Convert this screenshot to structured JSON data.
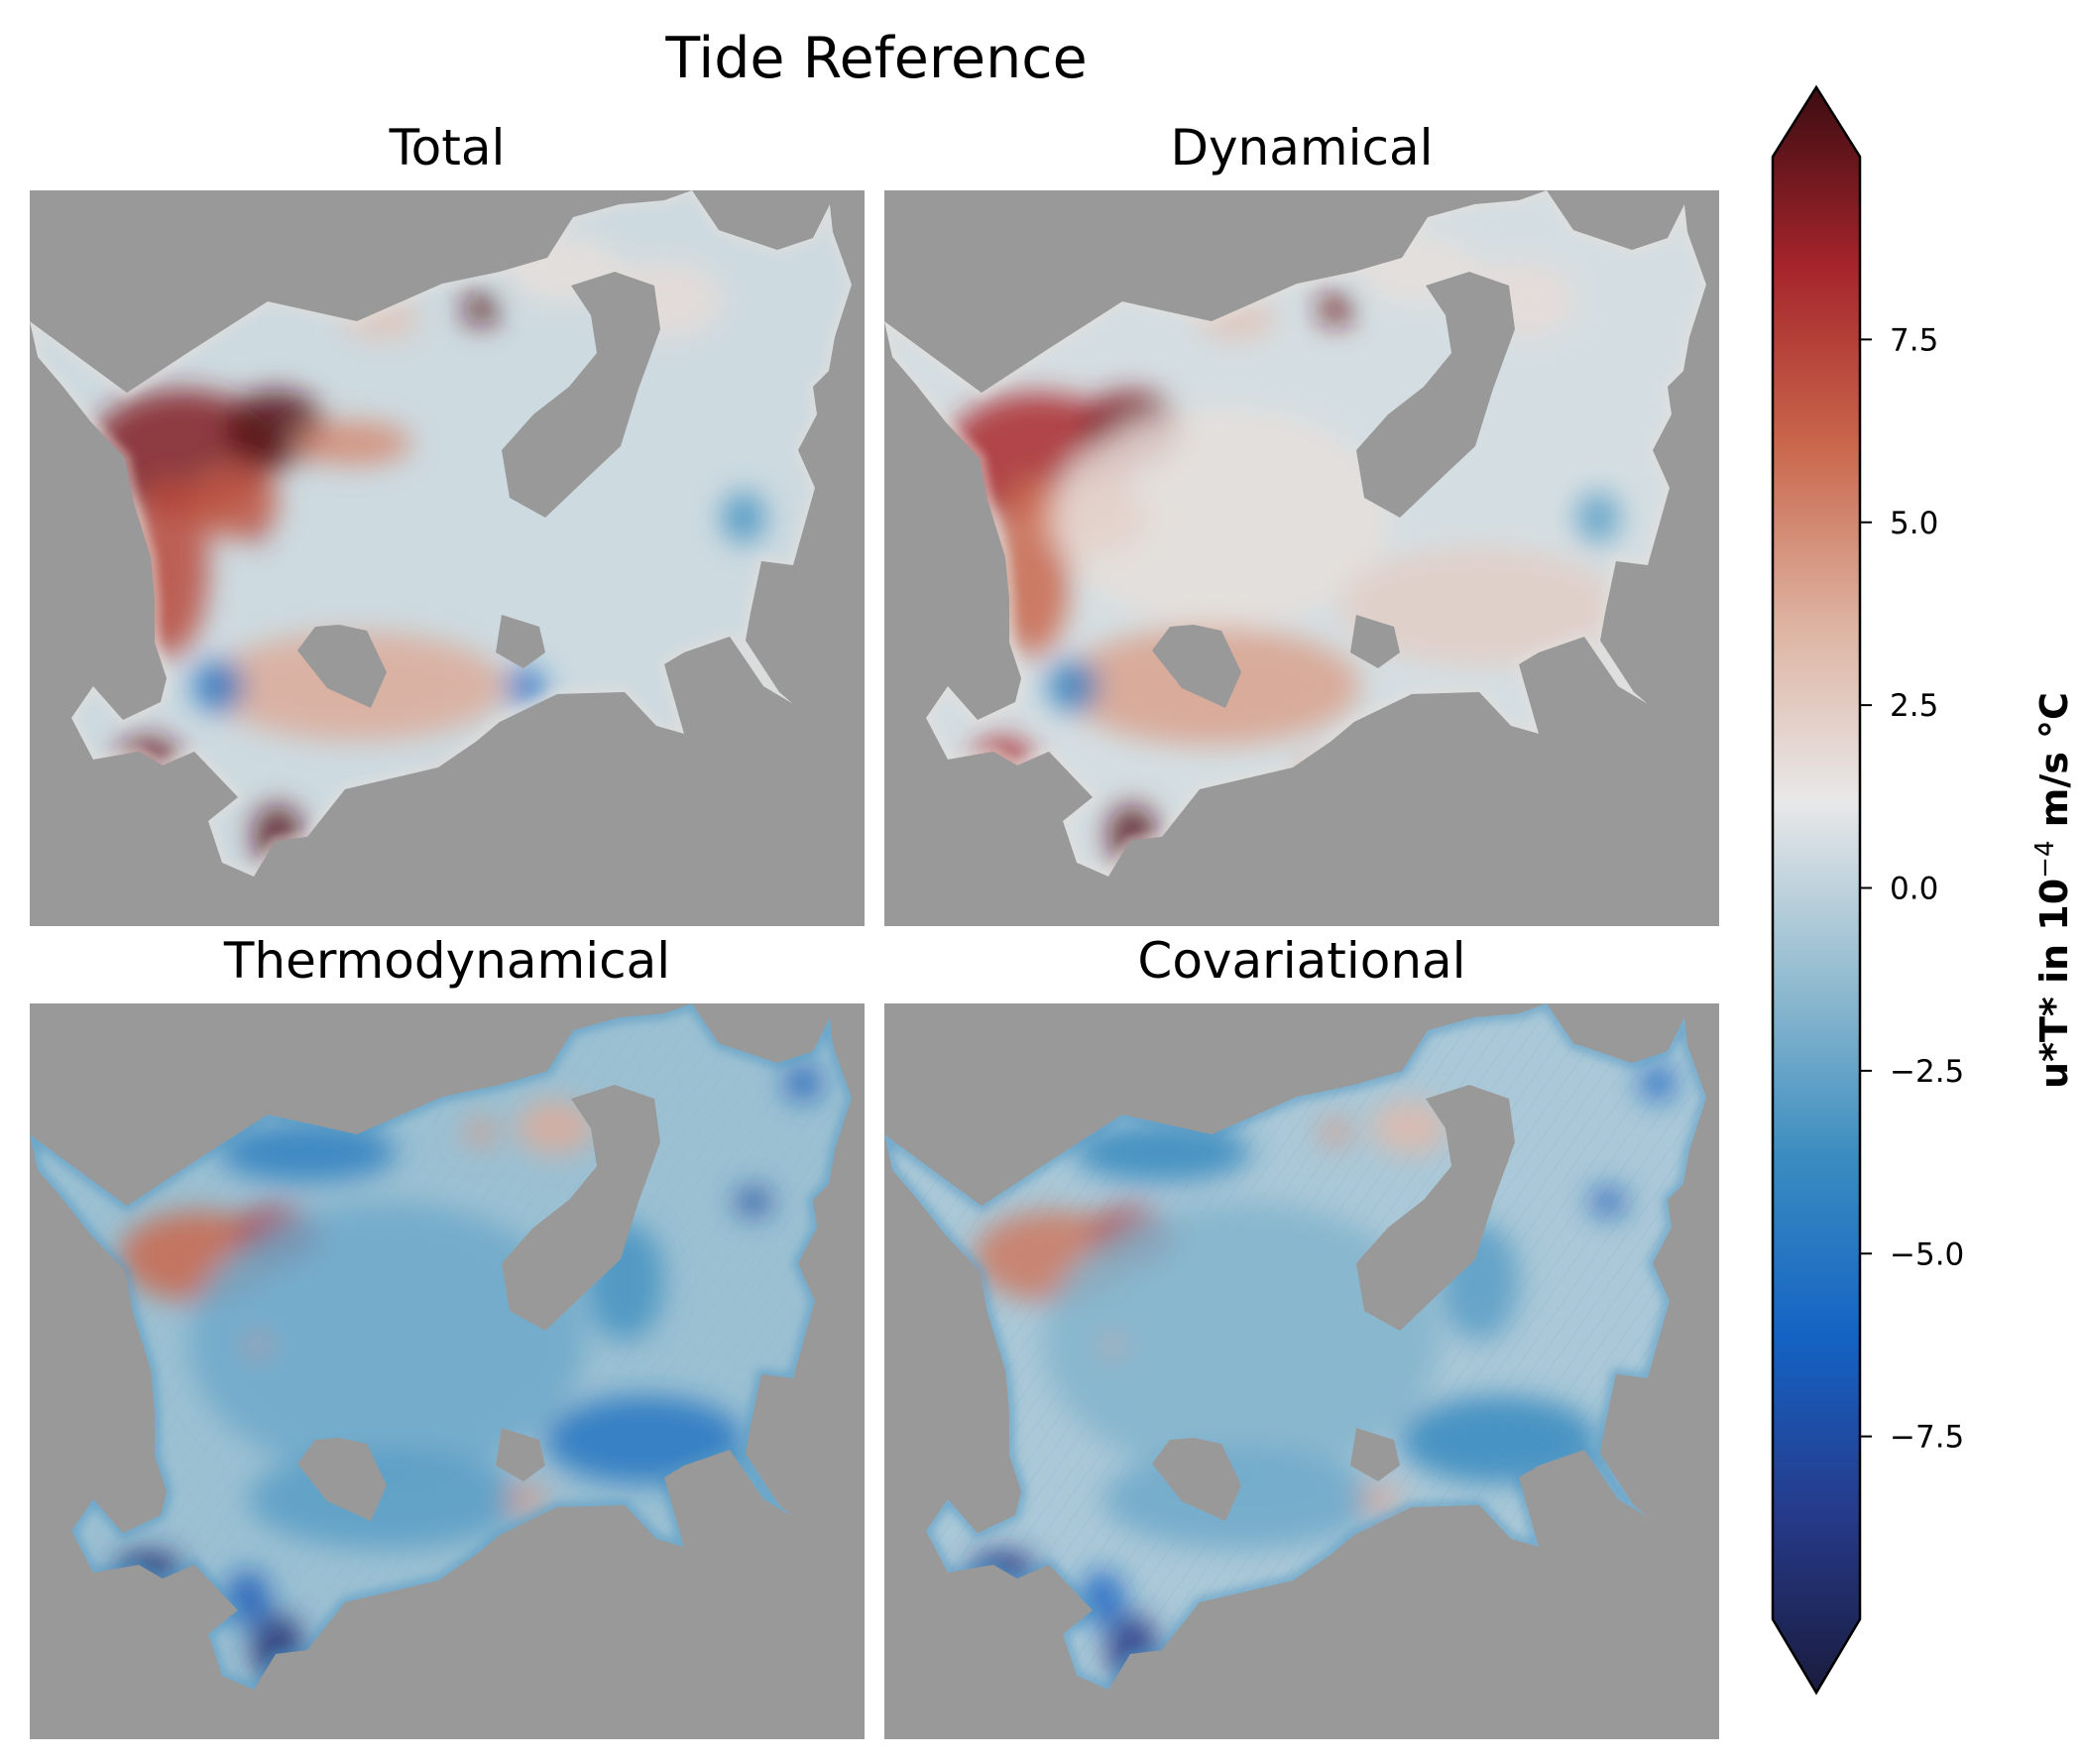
{
  "chart_data": {
    "type": "heatmap",
    "title": "Tide Reference",
    "panels": [
      {
        "title": "Total",
        "pattern": "total"
      },
      {
        "title": "Dynamical",
        "pattern": "dynamical"
      },
      {
        "title": "Thermodynamical",
        "pattern": "thermo"
      },
      {
        "title": "Covariational",
        "pattern": "covar"
      }
    ],
    "colorbar": {
      "label_main": "u*T* in 10",
      "label_exponent": "−4",
      "label_units": " m/s °C",
      "vmin": -10,
      "vmax": 10,
      "extend": "both",
      "ticks": [
        -7.5,
        -5.0,
        -2.5,
        0.0,
        2.5,
        5.0,
        7.5
      ],
      "tick_labels": [
        "−7.5",
        "−5.0",
        "−2.5",
        "0.0",
        "2.5",
        "5.0",
        "7.5"
      ],
      "colors": [
        "#1a1c3d",
        "#263a8a",
        "#1463c4",
        "#3a8cc0",
        "#93bcd0",
        "#e8e8e8",
        "#ddb2a0",
        "#c9664b",
        "#a5242b",
        "#3c0d12"
      ]
    },
    "land_color": "#999999",
    "axes_visible": false
  }
}
